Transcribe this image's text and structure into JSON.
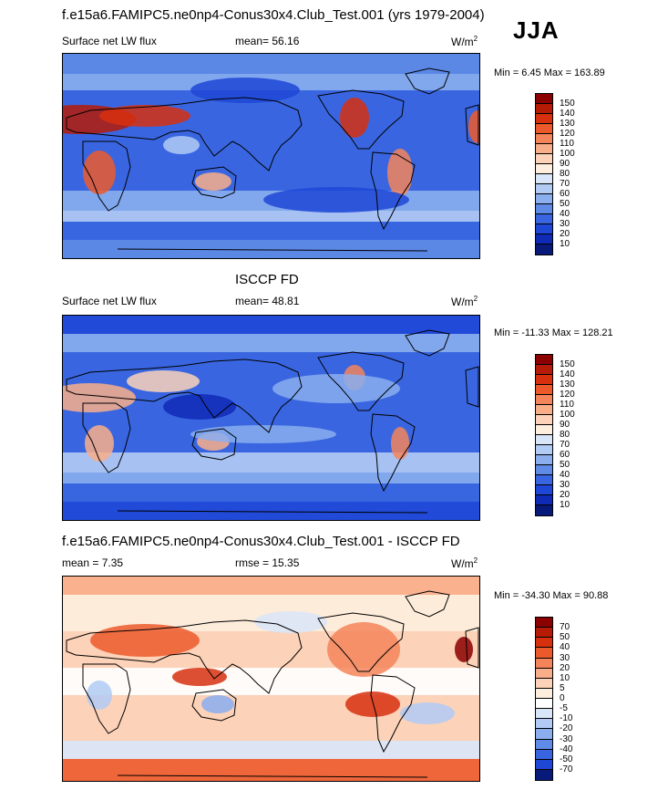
{
  "header": {
    "title": "f.e15a6.FAMIPC5.ne0np4-Conus30x4.Club_Test.001 (yrs 1979-2004)",
    "season": "JJA"
  },
  "panels": [
    {
      "title": "",
      "variable": "Surface net LW flux",
      "stat_label": "mean=",
      "stat_value": "56.16",
      "stat2_label": "",
      "stat2_value": "",
      "units": "W/m",
      "units_sup": "2",
      "minmax": "Min =   6.45 Max = 163.89",
      "colorbar": {
        "ticks": [
          "150",
          "140",
          "130",
          "120",
          "110",
          "100",
          "90",
          "80",
          "70",
          "60",
          "50",
          "40",
          "30",
          "20",
          "10"
        ],
        "colors": [
          "#8b0000",
          "#b51b06",
          "#d7300f",
          "#ec5a2c",
          "#f4855a",
          "#f9ae8a",
          "#fcd2b8",
          "#fdeede",
          "#d9e6f9",
          "#b2cbf4",
          "#8aaeee",
          "#5f8be6",
          "#3966e0",
          "#1e47d6",
          "#0f2ab5",
          "#071a7a"
        ]
      },
      "map_style": "model"
    },
    {
      "title": "ISCCP FD",
      "variable": "Surface net LW flux",
      "stat_label": "mean=",
      "stat_value": "48.81",
      "stat2_label": "",
      "stat2_value": "",
      "units": "W/m",
      "units_sup": "2",
      "minmax": "Min = -11.33 Max = 128.21",
      "colorbar": {
        "ticks": [
          "150",
          "140",
          "130",
          "120",
          "110",
          "100",
          "90",
          "80",
          "70",
          "60",
          "50",
          "40",
          "30",
          "20",
          "10"
        ],
        "colors": [
          "#8b0000",
          "#b51b06",
          "#d7300f",
          "#ec5a2c",
          "#f4855a",
          "#f9ae8a",
          "#fcd2b8",
          "#fdeede",
          "#d9e6f9",
          "#b2cbf4",
          "#8aaeee",
          "#5f8be6",
          "#3966e0",
          "#1e47d6",
          "#0f2ab5",
          "#071a7a"
        ]
      },
      "map_style": "obs"
    },
    {
      "title": "f.e15a6.FAMIPC5.ne0np4-Conus30x4.Club_Test.001 - ISCCP FD",
      "variable": "",
      "stat_label": "mean =",
      "stat_value": "7.35",
      "stat2_label": "rmse =",
      "stat2_value": "15.35",
      "units": "W/m",
      "units_sup": "2",
      "minmax": "Min = -34.30 Max = 90.88",
      "colorbar": {
        "ticks": [
          "70",
          "50",
          "40",
          "30",
          "20",
          "10",
          "5",
          "0",
          "-5",
          "-10",
          "-20",
          "-30",
          "-40",
          "-50",
          "-70"
        ],
        "colors": [
          "#8b0000",
          "#b51b06",
          "#d7300f",
          "#ec5a2c",
          "#f4855a",
          "#f9ae8a",
          "#fcd2b8",
          "#fdeede",
          "#ffffff",
          "#d9e6f9",
          "#b2cbf4",
          "#8aaeee",
          "#5f8be6",
          "#3966e0",
          "#1e47d6",
          "#071a7a"
        ]
      },
      "map_style": "diff"
    }
  ]
}
